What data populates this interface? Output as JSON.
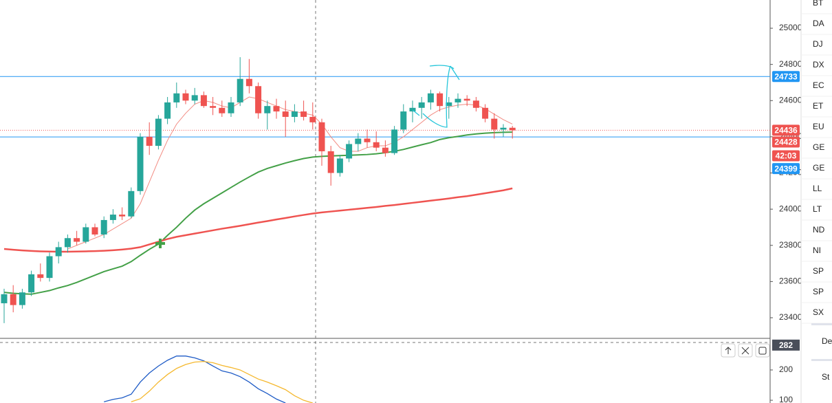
{
  "chart_data": [
    {
      "type": "candlestick",
      "open": [
        23480,
        23530,
        23470,
        23540,
        23640,
        23620,
        23740,
        23790,
        23840,
        23820,
        23900,
        23860,
        23940,
        23970,
        23960,
        24100,
        24400,
        24350,
        24500,
        24590,
        24640,
        24600,
        24630,
        24570,
        24560,
        24530,
        24590,
        24720,
        24680,
        24530,
        24570,
        24540,
        24510,
        24540,
        24510,
        24480,
        24320,
        24200,
        24280,
        24360,
        24390,
        24370,
        24340,
        24310,
        24440,
        24540,
        24560,
        24590,
        24640,
        24570,
        24590,
        24610,
        24600,
        24560,
        24500,
        24440,
        24450
      ],
      "high": [
        23560,
        23580,
        23560,
        23660,
        23700,
        23760,
        23820,
        23860,
        23880,
        23920,
        23920,
        23960,
        24000,
        24010,
        24120,
        24420,
        24480,
        24520,
        24620,
        24700,
        24660,
        24670,
        24650,
        24620,
        24600,
        24620,
        24840,
        24830,
        24700,
        24600,
        24610,
        24600,
        24580,
        24600,
        24590,
        24500,
        24350,
        24300,
        24380,
        24420,
        24440,
        24430,
        24380,
        24460,
        24580,
        24600,
        24620,
        24660,
        24650,
        24620,
        24640,
        24630,
        24620,
        24580,
        24530,
        24470,
        24460
      ],
      "low": [
        23370,
        23430,
        23450,
        23520,
        23600,
        23600,
        23700,
        23760,
        23800,
        23810,
        23850,
        23840,
        23920,
        23940,
        23950,
        24080,
        24300,
        24330,
        24470,
        24560,
        24580,
        24580,
        24560,
        24520,
        24510,
        24510,
        24570,
        24640,
        24500,
        24440,
        24500,
        24400,
        24480,
        24490,
        24440,
        24240,
        24130,
        24180,
        24260,
        24320,
        24340,
        24320,
        24290,
        24300,
        24420,
        24480,
        24500,
        24550,
        24540,
        24500,
        24560,
        24570,
        24540,
        24480,
        24390,
        24400,
        24390
      ],
      "close": [
        23530,
        23470,
        23540,
        23640,
        23620,
        23740,
        23790,
        23840,
        23820,
        23900,
        23860,
        23940,
        23970,
        23960,
        24100,
        24400,
        24350,
        24500,
        24590,
        24640,
        24600,
        24630,
        24570,
        24560,
        24530,
        24590,
        24720,
        24680,
        24530,
        24570,
        24540,
        24510,
        24540,
        24510,
        24480,
        24320,
        24200,
        24280,
        24360,
        24390,
        24370,
        24340,
        24310,
        24440,
        24540,
        24560,
        24590,
        24640,
        24570,
        24590,
        24610,
        24600,
        24560,
        24500,
        24440,
        24450,
        24436
      ],
      "up_color": "#26a69a",
      "down_color": "#ef5350",
      "ma_lines": [
        {
          "color": "#f28b82",
          "width": 1,
          "values": [
            null,
            null,
            null,
            null,
            null,
            null,
            null,
            23780,
            23800,
            23820,
            23840,
            23860,
            23890,
            23920,
            23950,
            24030,
            24150,
            24270,
            24380,
            24470,
            24530,
            24580,
            24600,
            24590,
            24570,
            24560,
            24590,
            24620,
            24610,
            24590,
            24570,
            24550,
            24540,
            24530,
            24520,
            24470,
            24400,
            24340,
            24320,
            24320,
            24340,
            24350,
            24350,
            24370,
            24400,
            24440,
            24480,
            24520,
            24550,
            24565,
            24575,
            24580,
            24575,
            24555,
            24525,
            24495,
            24470
          ]
        },
        {
          "color": "#43a047",
          "width": 2,
          "values": [
            23540,
            23535,
            23532,
            23530,
            23540,
            23550,
            23565,
            23578,
            23595,
            23615,
            23635,
            23655,
            23670,
            23685,
            23710,
            23745,
            23778,
            23807,
            23855,
            23900,
            23950,
            23995,
            24030,
            24060,
            24090,
            24120,
            24150,
            24178,
            24205,
            24225,
            24240,
            24255,
            24268,
            24280,
            24288,
            24292,
            24294,
            24296,
            24298,
            24300,
            24302,
            24306,
            24312,
            24320,
            24330,
            24343,
            24356,
            24368,
            24385,
            24395,
            24402,
            24410,
            24416,
            24420,
            24423,
            24425,
            24426
          ]
        },
        {
          "color": "#ef5350",
          "width": 2.5,
          "values": [
            23780,
            23776,
            23772,
            23769,
            23767,
            23766,
            23765,
            23765,
            23766,
            23767,
            23768,
            23770,
            23773,
            23777,
            23782,
            23790,
            23805,
            23820,
            23835,
            23847,
            23856,
            23865,
            23874,
            23883,
            23892,
            23900,
            23908,
            23917,
            23926,
            23934,
            23943,
            23951,
            23960,
            23968,
            23976,
            23982,
            23987,
            23992,
            23997,
            24002,
            24007,
            24012,
            24018,
            24023,
            24029,
            24035,
            24041,
            24047,
            24053,
            24059,
            24066,
            24072,
            24080,
            24088,
            24096,
            24104,
            24115
          ]
        }
      ],
      "ylim": [
        23286,
        25156
      ],
      "yticks": [
        23400,
        23600,
        23800,
        24000,
        24200,
        24400,
        24600,
        24800,
        25000
      ],
      "levels": [
        {
          "value": 24733,
          "color": "#2196f3",
          "line": "solid"
        },
        {
          "value": 24436,
          "color": "#ef5350",
          "line": "dotted"
        },
        {
          "value": 24428,
          "color": "#ef5350",
          "line": "none"
        },
        {
          "value": 24399,
          "color": "#2196f3",
          "line": "solid"
        }
      ],
      "countdown": "42:03"
    },
    {
      "type": "line",
      "series": [
        {
          "color": "#1e5bc6",
          "values": [
            null,
            null,
            null,
            null,
            null,
            null,
            null,
            null,
            null,
            null,
            null,
            95,
            103,
            108,
            120,
            160,
            190,
            213,
            232,
            246,
            246,
            240,
            230,
            213,
            197,
            190,
            178,
            160,
            138,
            122,
            104,
            91,
            null,
            null,
            null,
            null,
            null,
            null,
            null,
            null,
            null,
            null,
            null,
            null,
            null,
            null,
            null,
            null,
            null,
            null,
            null,
            null,
            null,
            null,
            null,
            null,
            null
          ]
        },
        {
          "color": "#f5b82e",
          "values": [
            null,
            null,
            null,
            null,
            null,
            null,
            null,
            null,
            null,
            null,
            null,
            null,
            null,
            null,
            95,
            105,
            130,
            160,
            185,
            205,
            218,
            226,
            228,
            224,
            215,
            208,
            200,
            185,
            170,
            160,
            148,
            135,
            115,
            100,
            91,
            null,
            null,
            null,
            null,
            null,
            null,
            null,
            null,
            null,
            null,
            null,
            null,
            null,
            null,
            null,
            null,
            null,
            null,
            null,
            null,
            null,
            null
          ]
        }
      ],
      "ylim": [
        91,
        302
      ],
      "yticks": [
        100,
        200
      ],
      "current": 282
    }
  ],
  "watchlist": [
    "BT",
    "DA",
    "DJ",
    "DX",
    "EC",
    "ET",
    "EU",
    "GE",
    "GE",
    "LL",
    "LT",
    "ND",
    "NI",
    "SP",
    "SP",
    "SX"
  ],
  "sections": [
    "De",
    "St"
  ]
}
